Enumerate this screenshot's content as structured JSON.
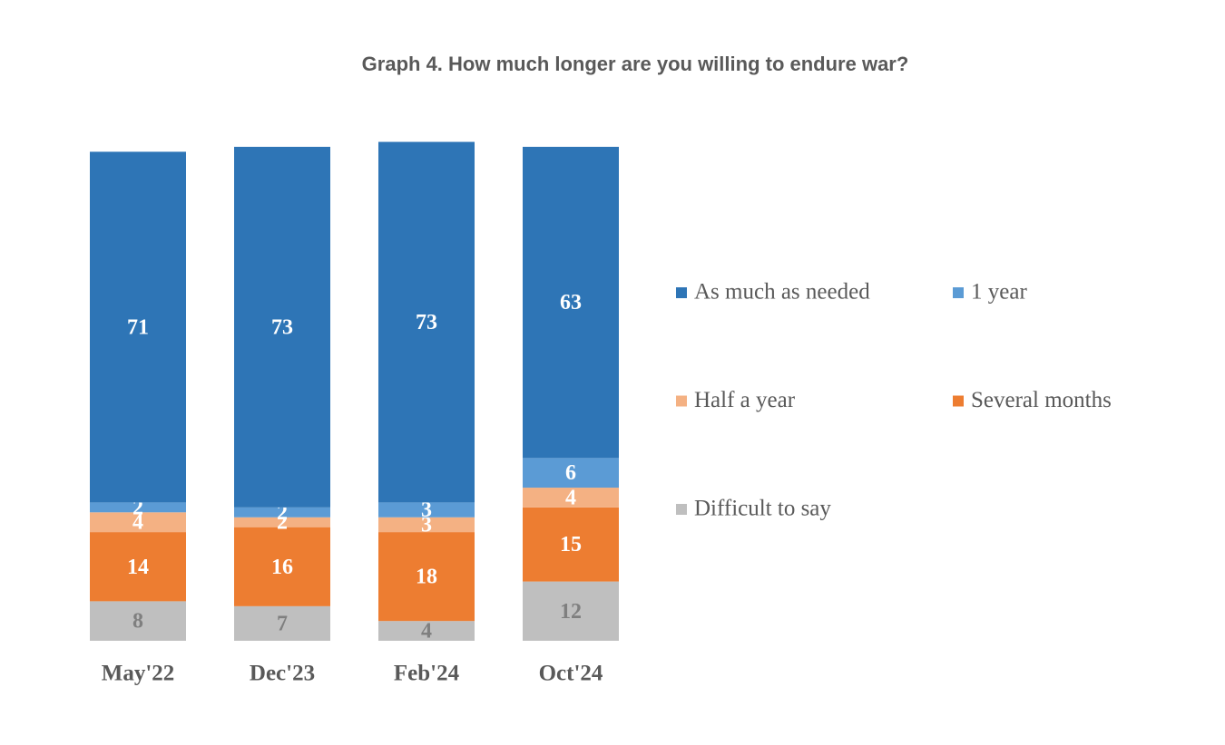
{
  "chart_data": {
    "type": "stacked_bar",
    "title": "Graph 4. How much longer are you willing to endure war?",
    "categories": [
      "May'22",
      "Dec'23",
      "Feb'24",
      "Oct'24"
    ],
    "series": [
      {
        "name": "As much as needed",
        "color": "#2E75B6",
        "label_color": "#ffffff",
        "values": [
          71,
          73,
          73,
          63
        ]
      },
      {
        "name": "1 year",
        "color": "#5B9BD5",
        "label_color": "#ffffff",
        "values": [
          2,
          2,
          3,
          6
        ]
      },
      {
        "name": "Half a year",
        "color": "#F4B183",
        "label_color": "#ffffff",
        "values": [
          4,
          2,
          3,
          4
        ]
      },
      {
        "name": "Several months",
        "color": "#ED7D31",
        "label_color": "#ffffff",
        "values": [
          14,
          16,
          18,
          15
        ]
      },
      {
        "name": "Difficult to say",
        "color": "#BFBFBF",
        "label_color": "#7f7f7f",
        "values": [
          8,
          7,
          4,
          12
        ]
      }
    ],
    "ylim": [
      0,
      100
    ],
    "legend": "right"
  }
}
